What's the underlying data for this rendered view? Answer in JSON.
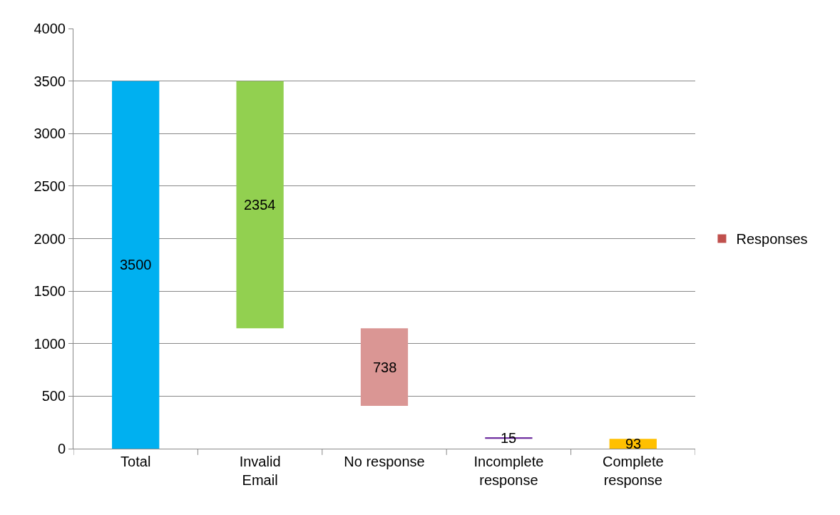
{
  "chart_data": {
    "type": "bar",
    "categories": [
      "Total",
      "Invalid Email",
      "No response",
      "Incomplete response",
      "Complete response"
    ],
    "series": [
      {
        "name": "Responses",
        "color": "#c0504d",
        "values": [
          3500,
          2354,
          738,
          15,
          93
        ],
        "colors": [
          "#00b0f0",
          "#92d050",
          "#da9694",
          "#7030a0",
          "#ffc000"
        ],
        "base": [
          0,
          1146,
          408,
          93,
          0
        ]
      }
    ],
    "ylim": [
      0,
      4000
    ],
    "yticks": [
      0,
      500,
      1000,
      1500,
      2000,
      2500,
      3000,
      3500,
      4000
    ],
    "grid": "y",
    "legend": "right",
    "data_labels": true
  }
}
